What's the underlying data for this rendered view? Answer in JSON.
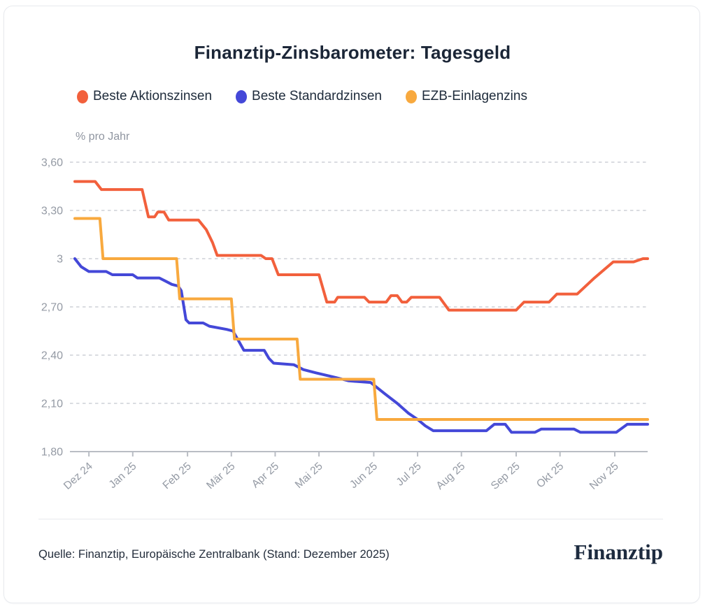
{
  "title": "Finanztip-Zinsbarometer: Tagesgeld",
  "legend": [
    {
      "label": "Beste Aktionszinsen"
    },
    {
      "label": "Beste Standardzinsen"
    },
    {
      "label": "EZB-Einlagenzins"
    }
  ],
  "chart_data": {
    "type": "line",
    "title": "Finanztip-Zinsbarometer: Tagesgeld",
    "ylabel": "% pro Jahr",
    "ylim": [
      1.8,
      3.6
    ],
    "grid": "horizontal-dashed",
    "legend_position": "top",
    "axis_color": "#b9bdc4",
    "grid_color": "#dadce1",
    "tick_label_color": "#949aa4",
    "x_domain": [
      "2024-12-01",
      "2025-12-02"
    ],
    "y_ticks": [
      {
        "value": 3.6,
        "label": "3,60"
      },
      {
        "value": 3.3,
        "label": "3,30"
      },
      {
        "value": 3.0,
        "label": "3"
      },
      {
        "value": 2.7,
        "label": "2,70"
      },
      {
        "value": 2.4,
        "label": "2,40"
      },
      {
        "value": 2.1,
        "label": "2,10"
      },
      {
        "value": 1.8,
        "label": "1,80"
      }
    ],
    "x_ticks": [
      {
        "date": "2024-12-10",
        "label": "Dez 24"
      },
      {
        "date": "2025-01-07",
        "label": "Jan 25"
      },
      {
        "date": "2025-02-11",
        "label": "Feb 25"
      },
      {
        "date": "2025-03-11",
        "label": "Mär 25"
      },
      {
        "date": "2025-04-08",
        "label": "Apr 25"
      },
      {
        "date": "2025-05-06",
        "label": "Mai 25"
      },
      {
        "date": "2025-06-10",
        "label": "Jun 25"
      },
      {
        "date": "2025-07-08",
        "label": "Jul 25"
      },
      {
        "date": "2025-08-05",
        "label": "Aug 25"
      },
      {
        "date": "2025-09-09",
        "label": "Sep 25"
      },
      {
        "date": "2025-10-07",
        "label": "Okt 25"
      },
      {
        "date": "2025-11-11",
        "label": "Nov 25"
      }
    ],
    "series": [
      {
        "name": "Beste Aktionszinsen",
        "slug": "beste-aktionszinsen",
        "color": "#f2603c",
        "points": [
          [
            "2024-12-01",
            3.48
          ],
          [
            "2024-12-14",
            3.48
          ],
          [
            "2024-12-18",
            3.43
          ],
          [
            "2025-01-13",
            3.43
          ],
          [
            "2025-01-17",
            3.26
          ],
          [
            "2025-01-21",
            3.26
          ],
          [
            "2025-01-23",
            3.29
          ],
          [
            "2025-01-27",
            3.29
          ],
          [
            "2025-01-30",
            3.24
          ],
          [
            "2025-02-18",
            3.24
          ],
          [
            "2025-02-23",
            3.18
          ],
          [
            "2025-02-27",
            3.1
          ],
          [
            "2025-03-02",
            3.02
          ],
          [
            "2025-03-30",
            3.02
          ],
          [
            "2025-04-02",
            3.0
          ],
          [
            "2025-04-06",
            3.0
          ],
          [
            "2025-04-10",
            2.9
          ],
          [
            "2025-05-06",
            2.9
          ],
          [
            "2025-05-11",
            2.73
          ],
          [
            "2025-05-16",
            2.73
          ],
          [
            "2025-05-18",
            2.76
          ],
          [
            "2025-06-04",
            2.76
          ],
          [
            "2025-06-07",
            2.73
          ],
          [
            "2025-06-18",
            2.73
          ],
          [
            "2025-06-21",
            2.77
          ],
          [
            "2025-06-25",
            2.77
          ],
          [
            "2025-06-28",
            2.73
          ],
          [
            "2025-07-01",
            2.73
          ],
          [
            "2025-07-04",
            2.76
          ],
          [
            "2025-07-22",
            2.76
          ],
          [
            "2025-07-28",
            2.68
          ],
          [
            "2025-09-09",
            2.68
          ],
          [
            "2025-09-14",
            2.73
          ],
          [
            "2025-09-30",
            2.73
          ],
          [
            "2025-10-05",
            2.78
          ],
          [
            "2025-10-18",
            2.78
          ],
          [
            "2025-10-29",
            2.88
          ],
          [
            "2025-11-10",
            2.98
          ],
          [
            "2025-11-23",
            2.98
          ],
          [
            "2025-11-29",
            3.0
          ],
          [
            "2025-12-02",
            3.0
          ]
        ]
      },
      {
        "name": "Beste Standardzinsen",
        "slug": "beste-standardzinsen",
        "color": "#4448d8",
        "points": [
          [
            "2024-12-01",
            3.0
          ],
          [
            "2024-12-05",
            2.95
          ],
          [
            "2024-12-10",
            2.92
          ],
          [
            "2024-12-21",
            2.92
          ],
          [
            "2024-12-25",
            2.9
          ],
          [
            "2025-01-07",
            2.9
          ],
          [
            "2025-01-10",
            2.88
          ],
          [
            "2025-01-24",
            2.88
          ],
          [
            "2025-01-28",
            2.86
          ],
          [
            "2025-02-01",
            2.84
          ],
          [
            "2025-02-05",
            2.83
          ],
          [
            "2025-02-07",
            2.8
          ],
          [
            "2025-02-10",
            2.62
          ],
          [
            "2025-02-12",
            2.6
          ],
          [
            "2025-02-21",
            2.6
          ],
          [
            "2025-02-25",
            2.58
          ],
          [
            "2025-03-08",
            2.56
          ],
          [
            "2025-03-12",
            2.55
          ],
          [
            "2025-03-15",
            2.5
          ],
          [
            "2025-03-19",
            2.43
          ],
          [
            "2025-04-01",
            2.43
          ],
          [
            "2025-04-04",
            2.38
          ],
          [
            "2025-04-07",
            2.35
          ],
          [
            "2025-04-20",
            2.34
          ],
          [
            "2025-04-26",
            2.31
          ],
          [
            "2025-05-04",
            2.29
          ],
          [
            "2025-05-17",
            2.26
          ],
          [
            "2025-05-25",
            2.24
          ],
          [
            "2025-06-08",
            2.23
          ],
          [
            "2025-06-17",
            2.16
          ],
          [
            "2025-06-25",
            2.1
          ],
          [
            "2025-07-02",
            2.04
          ],
          [
            "2025-07-08",
            2.0
          ],
          [
            "2025-07-13",
            1.96
          ],
          [
            "2025-07-18",
            1.93
          ],
          [
            "2025-08-21",
            1.93
          ],
          [
            "2025-08-26",
            1.97
          ],
          [
            "2025-09-02",
            1.97
          ],
          [
            "2025-09-06",
            1.92
          ],
          [
            "2025-09-21",
            1.92
          ],
          [
            "2025-09-25",
            1.94
          ],
          [
            "2025-10-16",
            1.94
          ],
          [
            "2025-10-20",
            1.92
          ],
          [
            "2025-11-12",
            1.92
          ],
          [
            "2025-11-19",
            1.97
          ],
          [
            "2025-12-02",
            1.97
          ]
        ]
      },
      {
        "name": "EZB-Einlagenzins",
        "slug": "ezb-einlagenzins",
        "color": "#f8a93e",
        "points": [
          [
            "2024-12-01",
            3.25
          ],
          [
            "2024-12-17",
            3.25
          ],
          [
            "2024-12-19",
            3.0
          ],
          [
            "2025-02-04",
            3.0
          ],
          [
            "2025-02-06",
            2.75
          ],
          [
            "2025-03-11",
            2.75
          ],
          [
            "2025-03-13",
            2.5
          ],
          [
            "2025-04-22",
            2.5
          ],
          [
            "2025-04-24",
            2.25
          ],
          [
            "2025-06-10",
            2.25
          ],
          [
            "2025-06-12",
            2.0
          ],
          [
            "2025-12-02",
            2.0
          ]
        ]
      }
    ]
  },
  "footer": {
    "source": "Quelle: Finanztip, Europäische Zentralbank (Stand: Dezember 2025)",
    "logo": "Finanztip"
  }
}
